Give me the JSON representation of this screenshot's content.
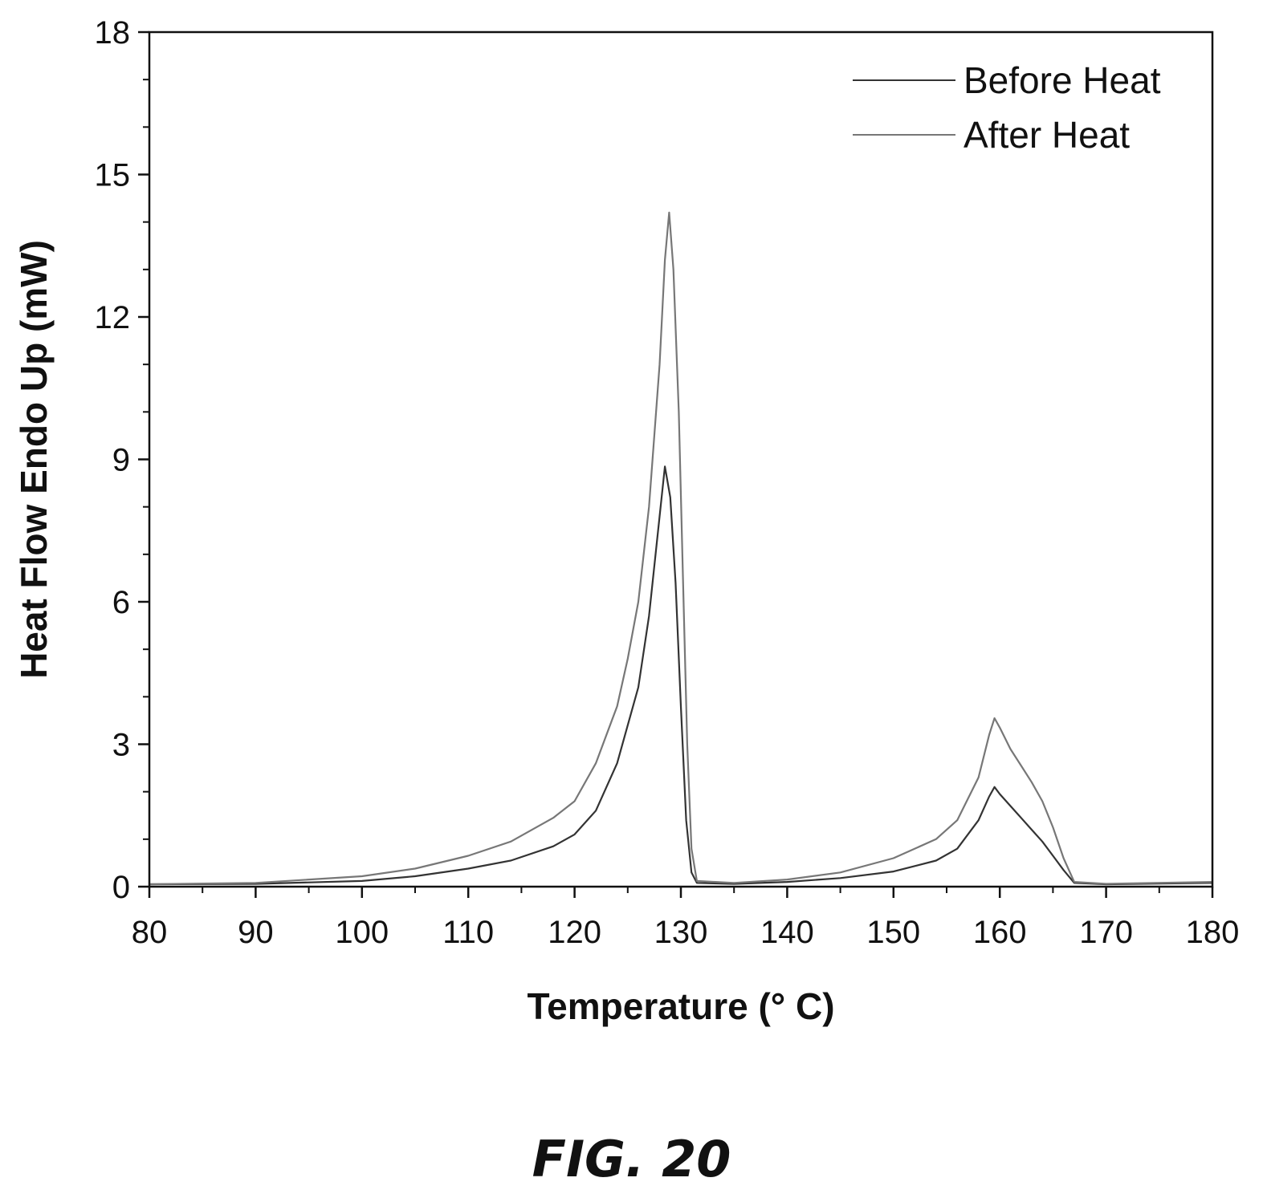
{
  "figure_label": "FIG. 20",
  "chart_data": {
    "type": "line",
    "xlabel": "Temperature (° C)",
    "ylabel": "Heat Flow Endo Up (mW)",
    "xlim": [
      80,
      180
    ],
    "ylim": [
      0,
      18
    ],
    "xticks": [
      "80",
      "90",
      "100",
      "110",
      "120",
      "130",
      "140",
      "150",
      "160",
      "170",
      "180"
    ],
    "yticks": [
      "0",
      "3",
      "6",
      "9",
      "12",
      "15",
      "18"
    ],
    "grid": false,
    "legend_position": "top-right",
    "series": [
      {
        "name": "Before Heat",
        "color": "#333333",
        "points": [
          [
            80,
            0.05
          ],
          [
            90,
            0.06
          ],
          [
            100,
            0.12
          ],
          [
            105,
            0.22
          ],
          [
            110,
            0.38
          ],
          [
            114,
            0.55
          ],
          [
            118,
            0.85
          ],
          [
            120,
            1.1
          ],
          [
            122,
            1.6
          ],
          [
            124,
            2.6
          ],
          [
            126,
            4.2
          ],
          [
            127,
            5.7
          ],
          [
            128,
            7.8
          ],
          [
            128.5,
            8.85
          ],
          [
            129,
            8.2
          ],
          [
            129.5,
            6.4
          ],
          [
            130,
            3.8
          ],
          [
            130.5,
            1.4
          ],
          [
            131,
            0.3
          ],
          [
            131.5,
            0.08
          ],
          [
            135,
            0.06
          ],
          [
            140,
            0.1
          ],
          [
            145,
            0.18
          ],
          [
            150,
            0.32
          ],
          [
            154,
            0.55
          ],
          [
            156,
            0.8
          ],
          [
            158,
            1.4
          ],
          [
            159,
            1.9
          ],
          [
            159.5,
            2.1
          ],
          [
            160,
            1.95
          ],
          [
            161,
            1.7
          ],
          [
            162,
            1.45
          ],
          [
            163,
            1.2
          ],
          [
            164,
            0.95
          ],
          [
            165,
            0.65
          ],
          [
            166,
            0.35
          ],
          [
            167,
            0.08
          ],
          [
            170,
            0.05
          ],
          [
            180,
            0.08
          ]
        ]
      },
      {
        "name": "After Heat",
        "color": "#777777",
        "points": [
          [
            80,
            0.05
          ],
          [
            90,
            0.08
          ],
          [
            100,
            0.22
          ],
          [
            105,
            0.38
          ],
          [
            110,
            0.65
          ],
          [
            114,
            0.95
          ],
          [
            118,
            1.45
          ],
          [
            120,
            1.8
          ],
          [
            122,
            2.6
          ],
          [
            124,
            3.8
          ],
          [
            125,
            4.8
          ],
          [
            126,
            6.0
          ],
          [
            127,
            8.0
          ],
          [
            128,
            11.0
          ],
          [
            128.5,
            13.2
          ],
          [
            128.9,
            14.2
          ],
          [
            129.3,
            13.0
          ],
          [
            129.8,
            10.0
          ],
          [
            130.2,
            6.5
          ],
          [
            130.6,
            3.0
          ],
          [
            131,
            0.8
          ],
          [
            131.5,
            0.12
          ],
          [
            135,
            0.08
          ],
          [
            140,
            0.15
          ],
          [
            145,
            0.3
          ],
          [
            150,
            0.6
          ],
          [
            154,
            1.0
          ],
          [
            156,
            1.4
          ],
          [
            158,
            2.3
          ],
          [
            159,
            3.2
          ],
          [
            159.5,
            3.55
          ],
          [
            160,
            3.35
          ],
          [
            161,
            2.9
          ],
          [
            162,
            2.55
          ],
          [
            163,
            2.2
          ],
          [
            164,
            1.8
          ],
          [
            165,
            1.25
          ],
          [
            166,
            0.6
          ],
          [
            167,
            0.1
          ],
          [
            170,
            0.06
          ],
          [
            180,
            0.1
          ]
        ]
      }
    ]
  }
}
